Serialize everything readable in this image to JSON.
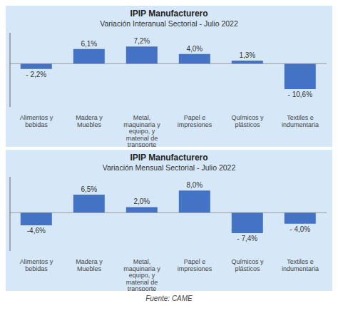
{
  "chart_data": [
    {
      "type": "bar",
      "title": "IPIP Manufacturero",
      "subtitle": "Variación Interanual Sectorial - Julio 2022",
      "categories": [
        "Alimentos y\nbebidas",
        "Madera y\nMuebles",
        "Metal,\nmaquinaria y\nequipo, y\nmaterial de\ntransporte",
        "Papel e\nimpresiones",
        "Químicos y\nplásticos",
        "Textiles e\nindumentaria"
      ],
      "values": [
        -2.2,
        6.1,
        7.2,
        4.0,
        1.3,
        -10.6
      ],
      "value_labels": [
        "- 2,2%",
        "6,1%",
        "7,2%",
        "4,0%",
        "1,3%",
        "- 10,6%"
      ],
      "color": "#4472C4",
      "ylim": [
        -18.076,
        12.896
      ],
      "tick_labels": "x",
      "data_labels": true,
      "grid": false
    },
    {
      "type": "bar",
      "title": "IPIP Manufacturero",
      "subtitle": "Variación Mensual Sectorial - Julio 2022",
      "categories": [
        "Alimentos y\nbebidas",
        "Madera y\nMuebles",
        "Metal,\nmaquinaria y\nequipo, y\nmaterial de\ntransporte",
        "Papel e\nimpresiones",
        "Químicos y\nplásticos",
        "Textiles e\nindumentaria"
      ],
      "values": [
        -4.6,
        6.5,
        2.0,
        8.0,
        -7.4,
        -4.0
      ],
      "value_labels": [
        "-4,6%",
        "6,5%",
        "2,0%",
        "8,0%",
        "- 7,4%",
        "- 4,0%"
      ],
      "color": "#4472C4",
      "ylim": [
        -13.868,
        12.928
      ],
      "tick_labels": "x",
      "data_labels": true,
      "grid": false,
      "annotations": [
        "Fuente: CAME"
      ]
    }
  ]
}
